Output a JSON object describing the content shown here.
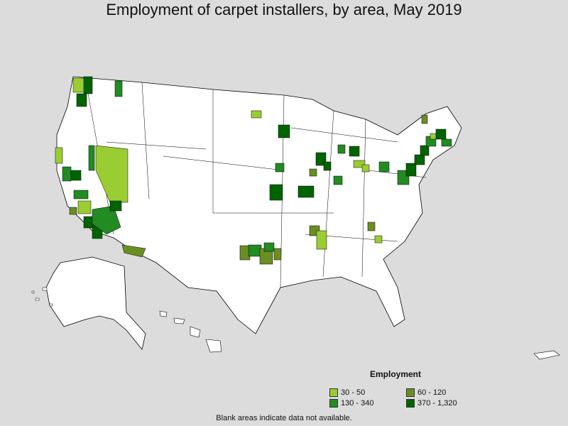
{
  "title": "Employment of carpet installers, by area, May 2019",
  "legend": {
    "title": "Employment",
    "bins": [
      {
        "label": "30 - 50",
        "color": "#9acd32"
      },
      {
        "label": "60 - 120",
        "color": "#6b8e23"
      },
      {
        "label": "130 - 340",
        "color": "#228b22"
      },
      {
        "label": "370 - 1,320",
        "color": "#006400"
      }
    ]
  },
  "footnote": "Blank areas indicate data not available.",
  "colors": {
    "background": "#dcdcdc",
    "no_data": "#ffffff",
    "boundary": "#000000"
  }
}
